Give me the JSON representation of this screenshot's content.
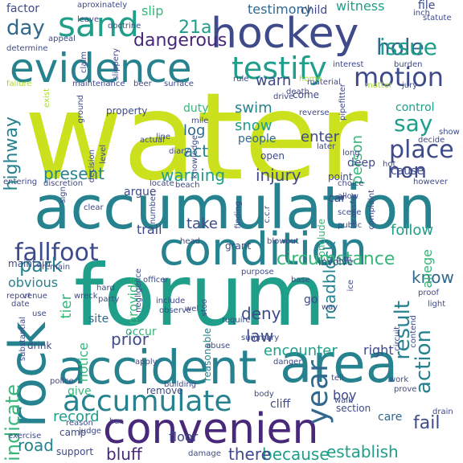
{
  "palette": {
    "lime": "#cbe11e",
    "yellowgreen": "#a8db34",
    "green": "#6ccd59",
    "seagreen": "#35b779",
    "teal": "#1f9e89",
    "tealblue": "#26828e",
    "blue": "#31688e",
    "indigo": "#3e4a89",
    "purple": "#482878",
    "darkpurple": "#440154"
  },
  "words": [
    {
      "text": "water",
      "color": "lime"
    },
    {
      "text": "forum",
      "color": "teal"
    },
    {
      "text": "accumulation",
      "color": "tealblue"
    },
    {
      "text": "convenien",
      "color": "purple"
    },
    {
      "text": "condition",
      "color": "tealblue"
    },
    {
      "text": "evidence",
      "color": "tealblue"
    },
    {
      "text": "hockey",
      "color": "indigo"
    },
    {
      "text": "area",
      "color": "tealblue"
    },
    {
      "text": "accident",
      "color": "tealblue"
    },
    {
      "text": "rock",
      "color": "tealblue"
    },
    {
      "text": "sand",
      "color": "teal"
    },
    {
      "text": "accumulate",
      "color": "tealblue"
    },
    {
      "text": "fallfoot",
      "color": "indigo"
    },
    {
      "text": "testify",
      "color": "teal"
    },
    {
      "text": "motion",
      "color": "indigo"
    },
    {
      "text": "hole",
      "color": "blue"
    },
    {
      "text": "issue",
      "color": "teal"
    },
    {
      "text": "place",
      "color": "indigo"
    },
    {
      "text": "say",
      "color": "teal"
    },
    {
      "text": "non",
      "color": "indigo"
    },
    {
      "text": "year",
      "color": "blue"
    },
    {
      "text": "park",
      "color": "tealblue"
    },
    {
      "text": "day",
      "color": "blue"
    },
    {
      "text": "21a",
      "color": "teal"
    },
    {
      "text": "dangerous",
      "color": "purple"
    },
    {
      "text": "highway",
      "color": "tealblue"
    },
    {
      "text": "warning",
      "color": "teal"
    },
    {
      "text": "present",
      "color": "tealblue"
    },
    {
      "text": "injury",
      "color": "indigo"
    },
    {
      "text": "result",
      "color": "tealblue"
    },
    {
      "text": "action",
      "color": "tealblue"
    },
    {
      "text": "indicate",
      "color": "seagreen"
    },
    {
      "text": "encounter",
      "color": "teal"
    },
    {
      "text": "establish",
      "color": "teal"
    },
    {
      "text": "because",
      "color": "teal"
    },
    {
      "text": "there",
      "color": "indigo"
    },
    {
      "text": "bluff",
      "color": "purple"
    },
    {
      "text": "fail",
      "color": "indigo"
    },
    {
      "text": "road",
      "color": "tealblue"
    },
    {
      "text": "record",
      "color": "teal"
    },
    {
      "text": "roadblock",
      "color": "tealblue"
    },
    {
      "text": "circumstance",
      "color": "seagreen"
    },
    {
      "text": "snow",
      "color": "teal"
    },
    {
      "text": "swim",
      "color": "tealblue"
    },
    {
      "text": "act",
      "color": "tealblue"
    },
    {
      "text": "log",
      "color": "blue"
    },
    {
      "text": "enter",
      "color": "indigo"
    },
    {
      "text": "person",
      "color": "seagreen"
    },
    {
      "text": "warn",
      "color": "indigo"
    },
    {
      "text": "know",
      "color": "blue"
    },
    {
      "text": "deny",
      "color": "indigo"
    },
    {
      "text": "law",
      "color": "indigo"
    },
    {
      "text": "notice",
      "color": "seagreen"
    },
    {
      "text": "tier",
      "color": "seagreen"
    },
    {
      "text": "prior",
      "color": "indigo"
    },
    {
      "text": "take",
      "color": "indigo"
    },
    {
      "text": "follow",
      "color": "teal"
    },
    {
      "text": "allege",
      "color": "seagreen"
    },
    {
      "text": "provide",
      "color": "seagreen"
    },
    {
      "text": "trail",
      "color": "indigo"
    },
    {
      "text": "obvious",
      "color": "tealblue"
    },
    {
      "text": "slip",
      "color": "seagreen"
    },
    {
      "text": "testimony",
      "color": "blue"
    },
    {
      "text": "witness",
      "color": "teal"
    },
    {
      "text": "file",
      "color": "indigo"
    },
    {
      "text": "factor",
      "color": "indigo"
    },
    {
      "text": "child",
      "color": "indigo"
    },
    {
      "text": "duty",
      "color": "seagreen"
    },
    {
      "text": "people",
      "color": "blue"
    },
    {
      "text": "deep",
      "color": "indigo"
    },
    {
      "text": "cause",
      "color": "indigo"
    },
    {
      "text": "control",
      "color": "teal"
    },
    {
      "text": "floor",
      "color": "indigo"
    },
    {
      "text": "boy",
      "color": "indigo"
    },
    {
      "text": "right",
      "color": "indigo"
    },
    {
      "text": "care",
      "color": "blue"
    },
    {
      "text": "go",
      "color": "indigo"
    },
    {
      "text": "site",
      "color": "blue"
    },
    {
      "text": "occur",
      "color": "seagreen"
    },
    {
      "text": "car",
      "color": "indigo"
    },
    {
      "text": "conclude",
      "color": "seagreen"
    },
    {
      "text": "reasonable",
      "color": "tealblue"
    },
    {
      "text": "argue",
      "color": "indigo"
    },
    {
      "text": "cliff",
      "color": "indigo"
    },
    {
      "text": "give",
      "color": "seagreen"
    },
    {
      "text": "camp",
      "color": "indigo"
    },
    {
      "text": "support",
      "color": "indigo"
    },
    {
      "text": "remove",
      "color": "indigo"
    },
    {
      "text": "section",
      "color": "indigo"
    },
    {
      "text": "come",
      "color": "indigo"
    },
    {
      "text": "property",
      "color": "indigo"
    },
    {
      "text": "open",
      "color": "indigo"
    },
    {
      "text": "point",
      "color": "indigo"
    },
    {
      "text": "grant",
      "color": "indigo"
    },
    {
      "text": "maintain",
      "color": "indigo"
    },
    {
      "text": "involve",
      "color": "indigo"
    },
    {
      "text": "drink",
      "color": "indigo"
    },
    {
      "text": "aproxinately",
      "color": "indigo"
    },
    {
      "text": "leave",
      "color": "indigo"
    },
    {
      "text": "doctrine",
      "color": "indigo"
    },
    {
      "text": "appeal",
      "color": "indigo"
    },
    {
      "text": "determine",
      "color": "indigo"
    },
    {
      "text": "claim",
      "color": "indigo"
    },
    {
      "text": "slippery",
      "color": "indigo"
    },
    {
      "text": "statute",
      "color": "indigo"
    },
    {
      "text": "burden",
      "color": "indigo"
    },
    {
      "text": "interest",
      "color": "indigo"
    },
    {
      "text": "failure",
      "color": "yellowgreen"
    },
    {
      "text": "maintenance",
      "color": "indigo"
    },
    {
      "text": "beer",
      "color": "indigo"
    },
    {
      "text": "surface",
      "color": "indigo"
    },
    {
      "text": "rule",
      "color": "indigo"
    },
    {
      "text": "drive",
      "color": "indigo"
    },
    {
      "text": "material",
      "color": "indigo"
    },
    {
      "text": "matter",
      "color": "yellowgreen"
    },
    {
      "text": "jury",
      "color": "indigo"
    },
    {
      "text": "pipefitter",
      "color": "indigo"
    },
    {
      "text": "death",
      "color": "indigo"
    },
    {
      "text": "home",
      "color": "yellowgreen"
    },
    {
      "text": "ground",
      "color": "indigo"
    },
    {
      "text": "exist",
      "color": "yellowgreen"
    },
    {
      "text": "mile",
      "color": "indigo"
    },
    {
      "text": "line",
      "color": "indigo"
    },
    {
      "text": "actual",
      "color": "indigo"
    },
    {
      "text": "diary",
      "color": "indigo"
    },
    {
      "text": "knowledge",
      "color": "indigo"
    },
    {
      "text": "reverse",
      "color": "indigo"
    },
    {
      "text": "later",
      "color": "indigo"
    },
    {
      "text": "show",
      "color": "indigo"
    },
    {
      "text": "decide",
      "color": "indigo"
    },
    {
      "text": "long",
      "color": "indigo"
    },
    {
      "text": "hot",
      "color": "indigo"
    },
    {
      "text": "however",
      "color": "indigo"
    },
    {
      "text": "choice",
      "color": "indigo"
    },
    {
      "text": "allow",
      "color": "indigo"
    },
    {
      "text": "complaint",
      "color": "indigo"
    },
    {
      "text": "transfer",
      "color": "indigo"
    },
    {
      "text": "decision",
      "color": "indigo"
    },
    {
      "text": "level",
      "color": "indigo"
    },
    {
      "text": "entering",
      "color": "indigo"
    },
    {
      "text": "discretion",
      "color": "indigo"
    },
    {
      "text": "locate",
      "color": "indigo"
    },
    {
      "text": "beach",
      "color": "indigo"
    },
    {
      "text": "sign",
      "color": "indigo"
    },
    {
      "text": "clear",
      "color": "indigo"
    },
    {
      "text": "number",
      "color": "indigo"
    },
    {
      "text": "c.c.r",
      "color": "indigo"
    },
    {
      "text": "finding",
      "color": "indigo"
    },
    {
      "text": "scene",
      "color": "indigo"
    },
    {
      "text": "public",
      "color": "indigo"
    },
    {
      "text": "wreck",
      "color": "indigo"
    },
    {
      "text": "head",
      "color": "indigo"
    },
    {
      "text": "blowout",
      "color": "indigo"
    },
    {
      "text": "p.m.",
      "color": "indigo"
    },
    {
      "text": "remain",
      "color": "indigo"
    },
    {
      "text": "officer",
      "color": "indigo"
    },
    {
      "text": "negligence",
      "color": "indigo"
    },
    {
      "text": "report",
      "color": "indigo"
    },
    {
      "text": "venue",
      "color": "indigo"
    },
    {
      "text": "date",
      "color": "indigo"
    },
    {
      "text": "hard",
      "color": "indigo"
    },
    {
      "text": "party",
      "color": "indigo"
    },
    {
      "text": "include",
      "color": "indigo"
    },
    {
      "text": "observe",
      "color": "indigo"
    },
    {
      "text": "stoo",
      "color": "indigo"
    },
    {
      "text": "purpose",
      "color": "indigo"
    },
    {
      "text": "base",
      "color": "indigo"
    },
    {
      "text": "ice",
      "color": "indigo"
    },
    {
      "text": "way",
      "color": "indigo"
    },
    {
      "text": "proof",
      "color": "indigo"
    },
    {
      "text": "light",
      "color": "indigo"
    },
    {
      "text": "contend",
      "color": "indigo"
    },
    {
      "text": "circuit",
      "color": "indigo"
    },
    {
      "text": "use",
      "color": "indigo"
    },
    {
      "text": "substantial",
      "color": "indigo"
    },
    {
      "text": "require",
      "color": "indigo"
    },
    {
      "text": "summary",
      "color": "indigo"
    },
    {
      "text": "abuse",
      "color": "indigo"
    },
    {
      "text": "apply",
      "color": "indigo"
    },
    {
      "text": "danger",
      "color": "indigo"
    },
    {
      "text": "building",
      "color": "indigo"
    },
    {
      "text": "tell",
      "color": "indigo"
    },
    {
      "text": "police",
      "color": "indigo"
    },
    {
      "text": "body",
      "color": "indigo"
    },
    {
      "text": "walk",
      "color": "indigo"
    },
    {
      "text": "reason",
      "color": "indigo"
    },
    {
      "text": "exercise",
      "color": "indigo"
    },
    {
      "text": "judge",
      "color": "indigo"
    },
    {
      "text": "bar",
      "color": "indigo"
    },
    {
      "text": "damage",
      "color": "indigo"
    },
    {
      "text": "drain",
      "color": "indigo"
    },
    {
      "text": "work",
      "color": "indigo"
    },
    {
      "text": "prove",
      "color": "indigo"
    },
    {
      "text": "wel",
      "color": "indigo"
    },
    {
      "text": "inch",
      "color": "indigo"
    }
  ]
}
